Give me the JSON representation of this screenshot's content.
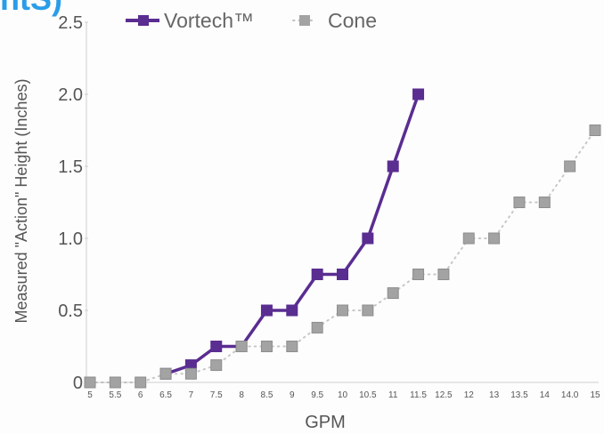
{
  "header": {
    "fragment": "ntS)"
  },
  "chart_data": {
    "type": "line",
    "title": "",
    "xlabel": "GPM",
    "ylabel": "Measured \"Action\" Height (Inches)",
    "categories": [
      "5",
      "5.5",
      "6",
      "6.5",
      "7",
      "7.5",
      "8",
      "8.5",
      "9",
      "9.5",
      "10",
      "10.5",
      "11",
      "11.5",
      "12.5",
      "12",
      "13",
      "13.5",
      "14",
      "14.0",
      "15"
    ],
    "y_ticks": [
      "0",
      "0.5",
      "1.0",
      "1.5",
      "2.0",
      "2.5"
    ],
    "ylim": [
      0,
      2.5
    ],
    "grid": false,
    "legend_position": "top",
    "series": [
      {
        "name": "Vortech™",
        "color": "#5a2d91",
        "style": "solid",
        "values": [
          null,
          null,
          null,
          0.06,
          0.12,
          0.25,
          0.25,
          0.5,
          0.5,
          0.75,
          0.75,
          1.0,
          1.5,
          2.0,
          null,
          null,
          null,
          null,
          null,
          null,
          null
        ]
      },
      {
        "name": "Cone",
        "color": "#9a9a9a",
        "style": "dotted",
        "values": [
          0,
          0,
          0,
          0.06,
          0.06,
          0.12,
          0.25,
          0.25,
          0.25,
          0.38,
          0.5,
          0.5,
          0.62,
          0.75,
          0.75,
          1.0,
          1.0,
          1.25,
          1.25,
          1.5,
          1.75
        ]
      }
    ]
  }
}
